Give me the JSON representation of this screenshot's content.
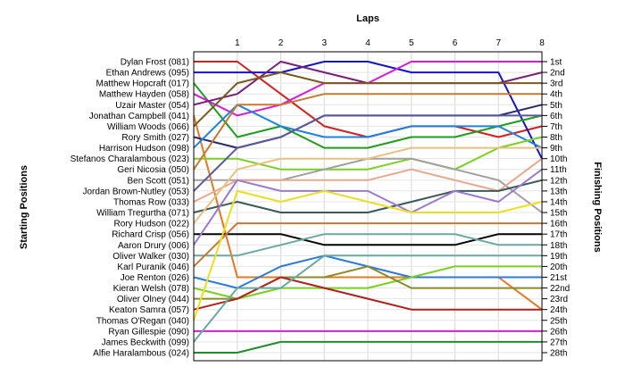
{
  "chart_data": {
    "type": "line",
    "title": "",
    "xlabel": "Laps",
    "ylabel_left": "Starting Positions",
    "ylabel_right": "Finishing Positions",
    "x": [
      0,
      1,
      2,
      3,
      4,
      5,
      6,
      7,
      8
    ],
    "x_tick_labels": [
      "1",
      "2",
      "3",
      "4",
      "5",
      "6",
      "7",
      "8"
    ],
    "ylim": [
      1,
      28
    ],
    "y_inverted": true,
    "grid": true,
    "starting_positions": [
      "Dylan Frost (081)",
      "Ethan Andrews (095)",
      "Matthew Hopcraft (017)",
      "Matthew Hayden (058)",
      "Uzair Master (054)",
      "Jonathan Campbell (041)",
      "William Woods (066)",
      "Rory Smith (027)",
      "Harrison Hudson (098)",
      "Stefanos Charalambous (023)",
      "Geri Nicosia (050)",
      "Ben Scott (051)",
      "Jordan Brown-Nutley (053)",
      "Thomas Row (033)",
      "William Tregurtha (071)",
      "Rory Hudson (022)",
      "Richard Crisp (056)",
      "Aaron Drury (006)",
      "Oliver Walker (030)",
      "Karl Puranik (046)",
      "Joe Renton (026)",
      "Kieran Welsh (078)",
      "Oliver Olney (044)",
      "Keaton Samra (057)",
      "Thomas O'Regan (040)",
      "Ryan Gillespie (090)",
      "James Beckwith (099)",
      "Alfie Haralambous (024)"
    ],
    "finishing_labels": [
      "1st",
      "2nd",
      "3rd",
      "4th",
      "5th",
      "6th",
      "7th",
      "8th",
      "9th",
      "10th",
      "11th",
      "12th",
      "13th",
      "14th",
      "15th",
      "16th",
      "17th",
      "18th",
      "19th",
      "20th",
      "21st",
      "22nd",
      "23rd",
      "24th",
      "25th",
      "26th",
      "27th",
      "28th"
    ],
    "series": [
      {
        "values": [
          1,
          1,
          4,
          7,
          8,
          7,
          7,
          8,
          7
        ],
        "color": "#d42020"
      },
      {
        "values": [
          2,
          2,
          2,
          1,
          1,
          2,
          2,
          2,
          10
        ],
        "color": "#1414c8"
      },
      {
        "values": [
          3,
          8,
          7,
          9,
          9,
          8,
          8,
          7,
          6
        ],
        "color": "#1e9e1e"
      },
      {
        "values": [
          4,
          6,
          5,
          3,
          3,
          1,
          1,
          1,
          1
        ],
        "color": "#d81ad8"
      },
      {
        "values": [
          5,
          4,
          1,
          2,
          3,
          3,
          3,
          3,
          2
        ],
        "color": "#7a1e7a"
      },
      {
        "values": [
          6,
          21,
          21,
          21,
          21,
          21,
          21,
          21,
          24
        ],
        "color": "#e87820"
      },
      {
        "values": [
          7,
          3,
          2,
          3,
          3,
          3,
          3,
          3,
          3
        ],
        "color": "#7a5a1e"
      },
      {
        "values": [
          8,
          9,
          8,
          6,
          6,
          6,
          6,
          6,
          5
        ],
        "color": "#2a2a6e"
      },
      {
        "values": [
          9,
          5,
          7,
          8,
          8,
          7,
          7,
          7,
          9
        ],
        "color": "#1e82e0"
      },
      {
        "values": [
          10,
          10,
          11,
          11,
          11,
          10,
          11,
          9,
          8
        ],
        "color": "#7ad020"
      },
      {
        "values": [
          11,
          5,
          5,
          4,
          4,
          4,
          4,
          4,
          4
        ],
        "color": "#c87830"
      },
      {
        "values": [
          12,
          12,
          12,
          11,
          10,
          10,
          11,
          12,
          15
        ],
        "color": "#a0a0a0"
      },
      {
        "values": [
          13,
          9,
          8,
          6,
          6,
          6,
          6,
          6,
          6
        ],
        "color": "#5a5a9a"
      },
      {
        "values": [
          14,
          12,
          12,
          12,
          12,
          11,
          12,
          13,
          10
        ],
        "color": "#e8a890"
      },
      {
        "values": [
          15,
          14,
          15,
          15,
          15,
          14,
          13,
          13,
          12
        ],
        "color": "#3a5a5a"
      },
      {
        "values": [
          16,
          11,
          10,
          10,
          10,
          9,
          9,
          9,
          9
        ],
        "color": "#e8c080"
      },
      {
        "values": [
          17,
          17,
          17,
          18,
          18,
          18,
          18,
          17,
          17
        ],
        "color": "#000000"
      },
      {
        "values": [
          18,
          12,
          13,
          13,
          13,
          15,
          13,
          14,
          11
        ],
        "color": "#9a7ad0"
      },
      {
        "values": [
          19,
          19,
          18,
          17,
          17,
          17,
          17,
          18,
          18
        ],
        "color": "#6aa8a0"
      },
      {
        "values": [
          20,
          16,
          16,
          16,
          16,
          16,
          16,
          16,
          16
        ],
        "color": "#c87830"
      },
      {
        "values": [
          21,
          22,
          20,
          19,
          20,
          21,
          21,
          21,
          21
        ],
        "color": "#2a7ae0"
      },
      {
        "values": [
          22,
          23,
          22,
          22,
          22,
          21,
          20,
          20,
          20
        ],
        "color": "#7ad020"
      },
      {
        "values": [
          23,
          23,
          21,
          21,
          20,
          22,
          22,
          22,
          22
        ],
        "color": "#8a8a2a"
      },
      {
        "values": [
          24,
          23,
          21,
          22,
          23,
          24,
          24,
          24,
          24
        ],
        "color": "#b02020"
      },
      {
        "values": [
          25,
          13,
          14,
          13,
          14,
          15,
          15,
          15,
          14
        ],
        "color": "#e8e020"
      },
      {
        "values": [
          26,
          26,
          26,
          26,
          26,
          26,
          26,
          26,
          26
        ],
        "color": "#d81ad8"
      },
      {
        "values": [
          27,
          22,
          22,
          19,
          19,
          19,
          19,
          19,
          19
        ],
        "color": "#6aa8a0"
      },
      {
        "values": [
          28,
          28,
          27,
          27,
          27,
          27,
          27,
          27,
          27
        ],
        "color": "#1e8e2e"
      }
    ]
  }
}
